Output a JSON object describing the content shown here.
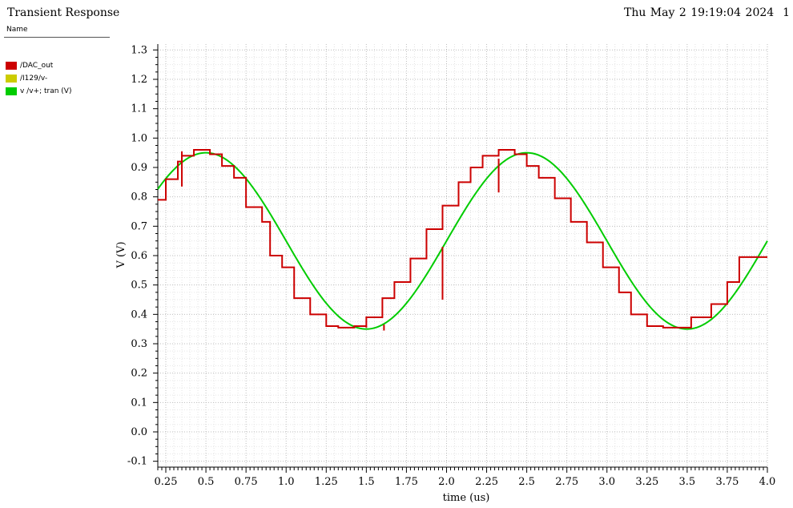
{
  "header": {
    "title": "Transient Response",
    "datetime": "Thu May 2 19:19:04 2024",
    "page": "1"
  },
  "legend": {
    "header": "Name",
    "items": [
      {
        "label": "/DAC_out",
        "color": "#cc0000"
      },
      {
        "label": "/I129/v-",
        "color": "#cccc00"
      },
      {
        "label": "v /v+; tran (V)",
        "color": "#00cc00"
      }
    ]
  },
  "chart_data": {
    "type": "line",
    "xlabel": "time (us)",
    "ylabel": "V (V)",
    "xlim": [
      0.2,
      4.0
    ],
    "ylim": [
      -0.12,
      1.32
    ],
    "xticks": [
      "0.25",
      "0.5",
      "0.75",
      "1.0",
      "1.25",
      "1.5",
      "1.75",
      "2.0",
      "2.25",
      "2.5",
      "2.75",
      "3.0",
      "3.25",
      "3.5",
      "3.75",
      "4.0"
    ],
    "yticks": [
      "1.3",
      "1.2",
      "1.1",
      "1.0",
      "0.9",
      "0.8",
      "0.7",
      "0.6",
      "0.5",
      "0.4",
      "0.3",
      "0.2",
      "0.1",
      "0.0",
      "-0.1"
    ],
    "grid": true,
    "series": [
      {
        "name": "/DAC_out",
        "color": "#cc0000",
        "step": true,
        "x": [
          0.2,
          0.25,
          0.325,
          0.35,
          0.425,
          0.525,
          0.6,
          0.675,
          0.75,
          0.85,
          0.9,
          0.975,
          1.05,
          1.15,
          1.25,
          1.325,
          1.425,
          1.5,
          1.6,
          1.675,
          1.775,
          1.875,
          1.975,
          2.075,
          2.15,
          2.225,
          2.325,
          2.425,
          2.5,
          2.575,
          2.675,
          2.775,
          2.875,
          2.975,
          3.075,
          3.15,
          3.25,
          3.35,
          3.425,
          3.525,
          3.65,
          3.75,
          3.825,
          3.92,
          4.0
        ],
        "y": [
          0.79,
          0.86,
          0.92,
          0.94,
          0.96,
          0.945,
          0.905,
          0.865,
          0.765,
          0.715,
          0.6,
          0.56,
          0.455,
          0.4,
          0.36,
          0.355,
          0.36,
          0.39,
          0.455,
          0.51,
          0.59,
          0.69,
          0.77,
          0.85,
          0.9,
          0.94,
          0.96,
          0.945,
          0.905,
          0.865,
          0.795,
          0.715,
          0.645,
          0.56,
          0.475,
          0.4,
          0.36,
          0.355,
          0.355,
          0.39,
          0.435,
          0.51,
          0.595,
          0.595,
          0.595
        ],
        "glitches": [
          {
            "x": 0.35,
            "y": [
              0.835,
              0.955
            ]
          },
          {
            "x": 1.5,
            "y": [
              0.36,
              0.355
            ]
          },
          {
            "x": 1.61,
            "y": [
              0.345,
              0.365
            ]
          },
          {
            "x": 1.975,
            "y": [
              0.45,
              0.63
            ]
          },
          {
            "x": 2.325,
            "y": [
              0.815,
              0.93
            ]
          }
        ]
      },
      {
        "name": "v /v+; tran (V)",
        "color": "#00cc00",
        "function": "sine",
        "offset": 0.65,
        "amplitude": 0.3,
        "period": 2.0,
        "peak_at": 0.5,
        "x_range": [
          0.2,
          4.0
        ]
      }
    ]
  }
}
